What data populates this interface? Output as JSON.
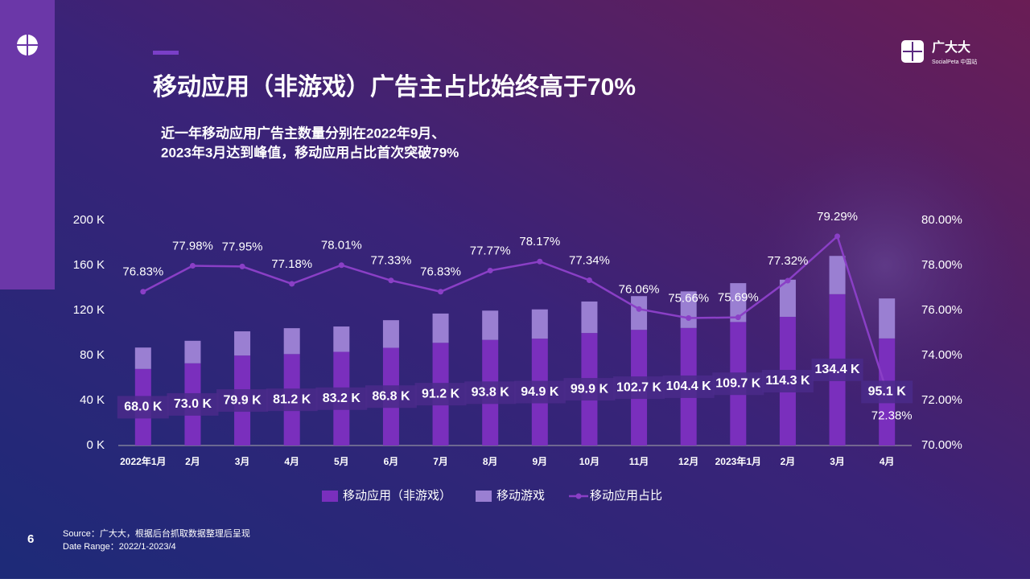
{
  "page": {
    "page_number": "6",
    "logo_text": "广大大",
    "logo_sub": "SocialPeta 中国站",
    "source": "Source：广大大，根据后台抓取数据整理后呈现",
    "date_range": "Date Range：2022/1-2023/4"
  },
  "chart_data": {
    "type": "bar",
    "title": "移动应用（非游戏）广告主占比始终高于70%",
    "subtitle": [
      "近一年移动应用广告主数量分别在2022年9月、",
      "2023年3月达到峰值，移动应用占比首次突破79%"
    ],
    "categories": [
      "2022年1月",
      "2月",
      "3月",
      "4月",
      "5月",
      "6月",
      "7月",
      "8月",
      "9月",
      "10月",
      "11月",
      "12月",
      "2023年1月",
      "2月",
      "3月",
      "4月"
    ],
    "series": [
      {
        "name": "移动应用（非游戏）",
        "color": "#7a2fbd",
        "values": [
          68.0,
          73.0,
          79.9,
          81.2,
          83.2,
          86.8,
          91.2,
          93.8,
          94.9,
          99.9,
          102.7,
          104.4,
          109.7,
          114.3,
          134.4,
          95.1
        ],
        "value_labels": [
          "68.0 K",
          "73.0 K",
          "79.9 K",
          "81.2 K",
          "83.2 K",
          "86.8 K",
          "91.2 K",
          "93.8 K",
          "94.9 K",
          "99.9 K",
          "102.7 K",
          "104.4 K",
          "109.7 K",
          "114.3 K",
          "134.4 K",
          "95.1 K"
        ]
      },
      {
        "name": "移动游戏",
        "color": "#9a7fd2",
        "values": [
          19,
          20,
          21.5,
          23,
          22.5,
          24.5,
          26,
          26,
          26,
          28,
          30,
          32.5,
          34.5,
          33,
          34,
          35.5
        ]
      },
      {
        "name": "移动应用占比",
        "type": "line",
        "axis": "y2",
        "color": "#8a3fc6",
        "values": [
          76.83,
          77.98,
          77.95,
          77.18,
          78.01,
          77.33,
          76.83,
          77.77,
          78.17,
          77.34,
          76.06,
          75.66,
          75.69,
          77.32,
          79.29,
          72.38
        ],
        "value_labels": [
          "76.83%",
          "77.98%",
          "77.95%",
          "77.18%",
          "78.01%",
          "77.33%",
          "76.83%",
          "77.77%",
          "78.17%",
          "77.34%",
          "76.06%",
          "75.66%",
          "75.69%",
          "77.32%",
          "79.29%",
          "72.38%"
        ]
      }
    ],
    "stacked": true,
    "ylim": [
      0,
      200
    ],
    "yticks": [
      {
        "value": 0,
        "label": "0 K"
      },
      {
        "value": 40,
        "label": "40 K"
      },
      {
        "value": 80,
        "label": "80 K"
      },
      {
        "value": 120,
        "label": "120 K"
      },
      {
        "value": 160,
        "label": "160 K"
      },
      {
        "value": 200,
        "label": "200 K"
      }
    ],
    "y2lim": [
      70,
      80
    ],
    "y2ticks": [
      {
        "value": 70,
        "label": "70.00%"
      },
      {
        "value": 72,
        "label": "72.00%"
      },
      {
        "value": 74,
        "label": "74.00%"
      },
      {
        "value": 76,
        "label": "76.00%"
      },
      {
        "value": 78,
        "label": "78.00%"
      },
      {
        "value": 80,
        "label": "80.00%"
      }
    ],
    "legend": "bottom"
  }
}
